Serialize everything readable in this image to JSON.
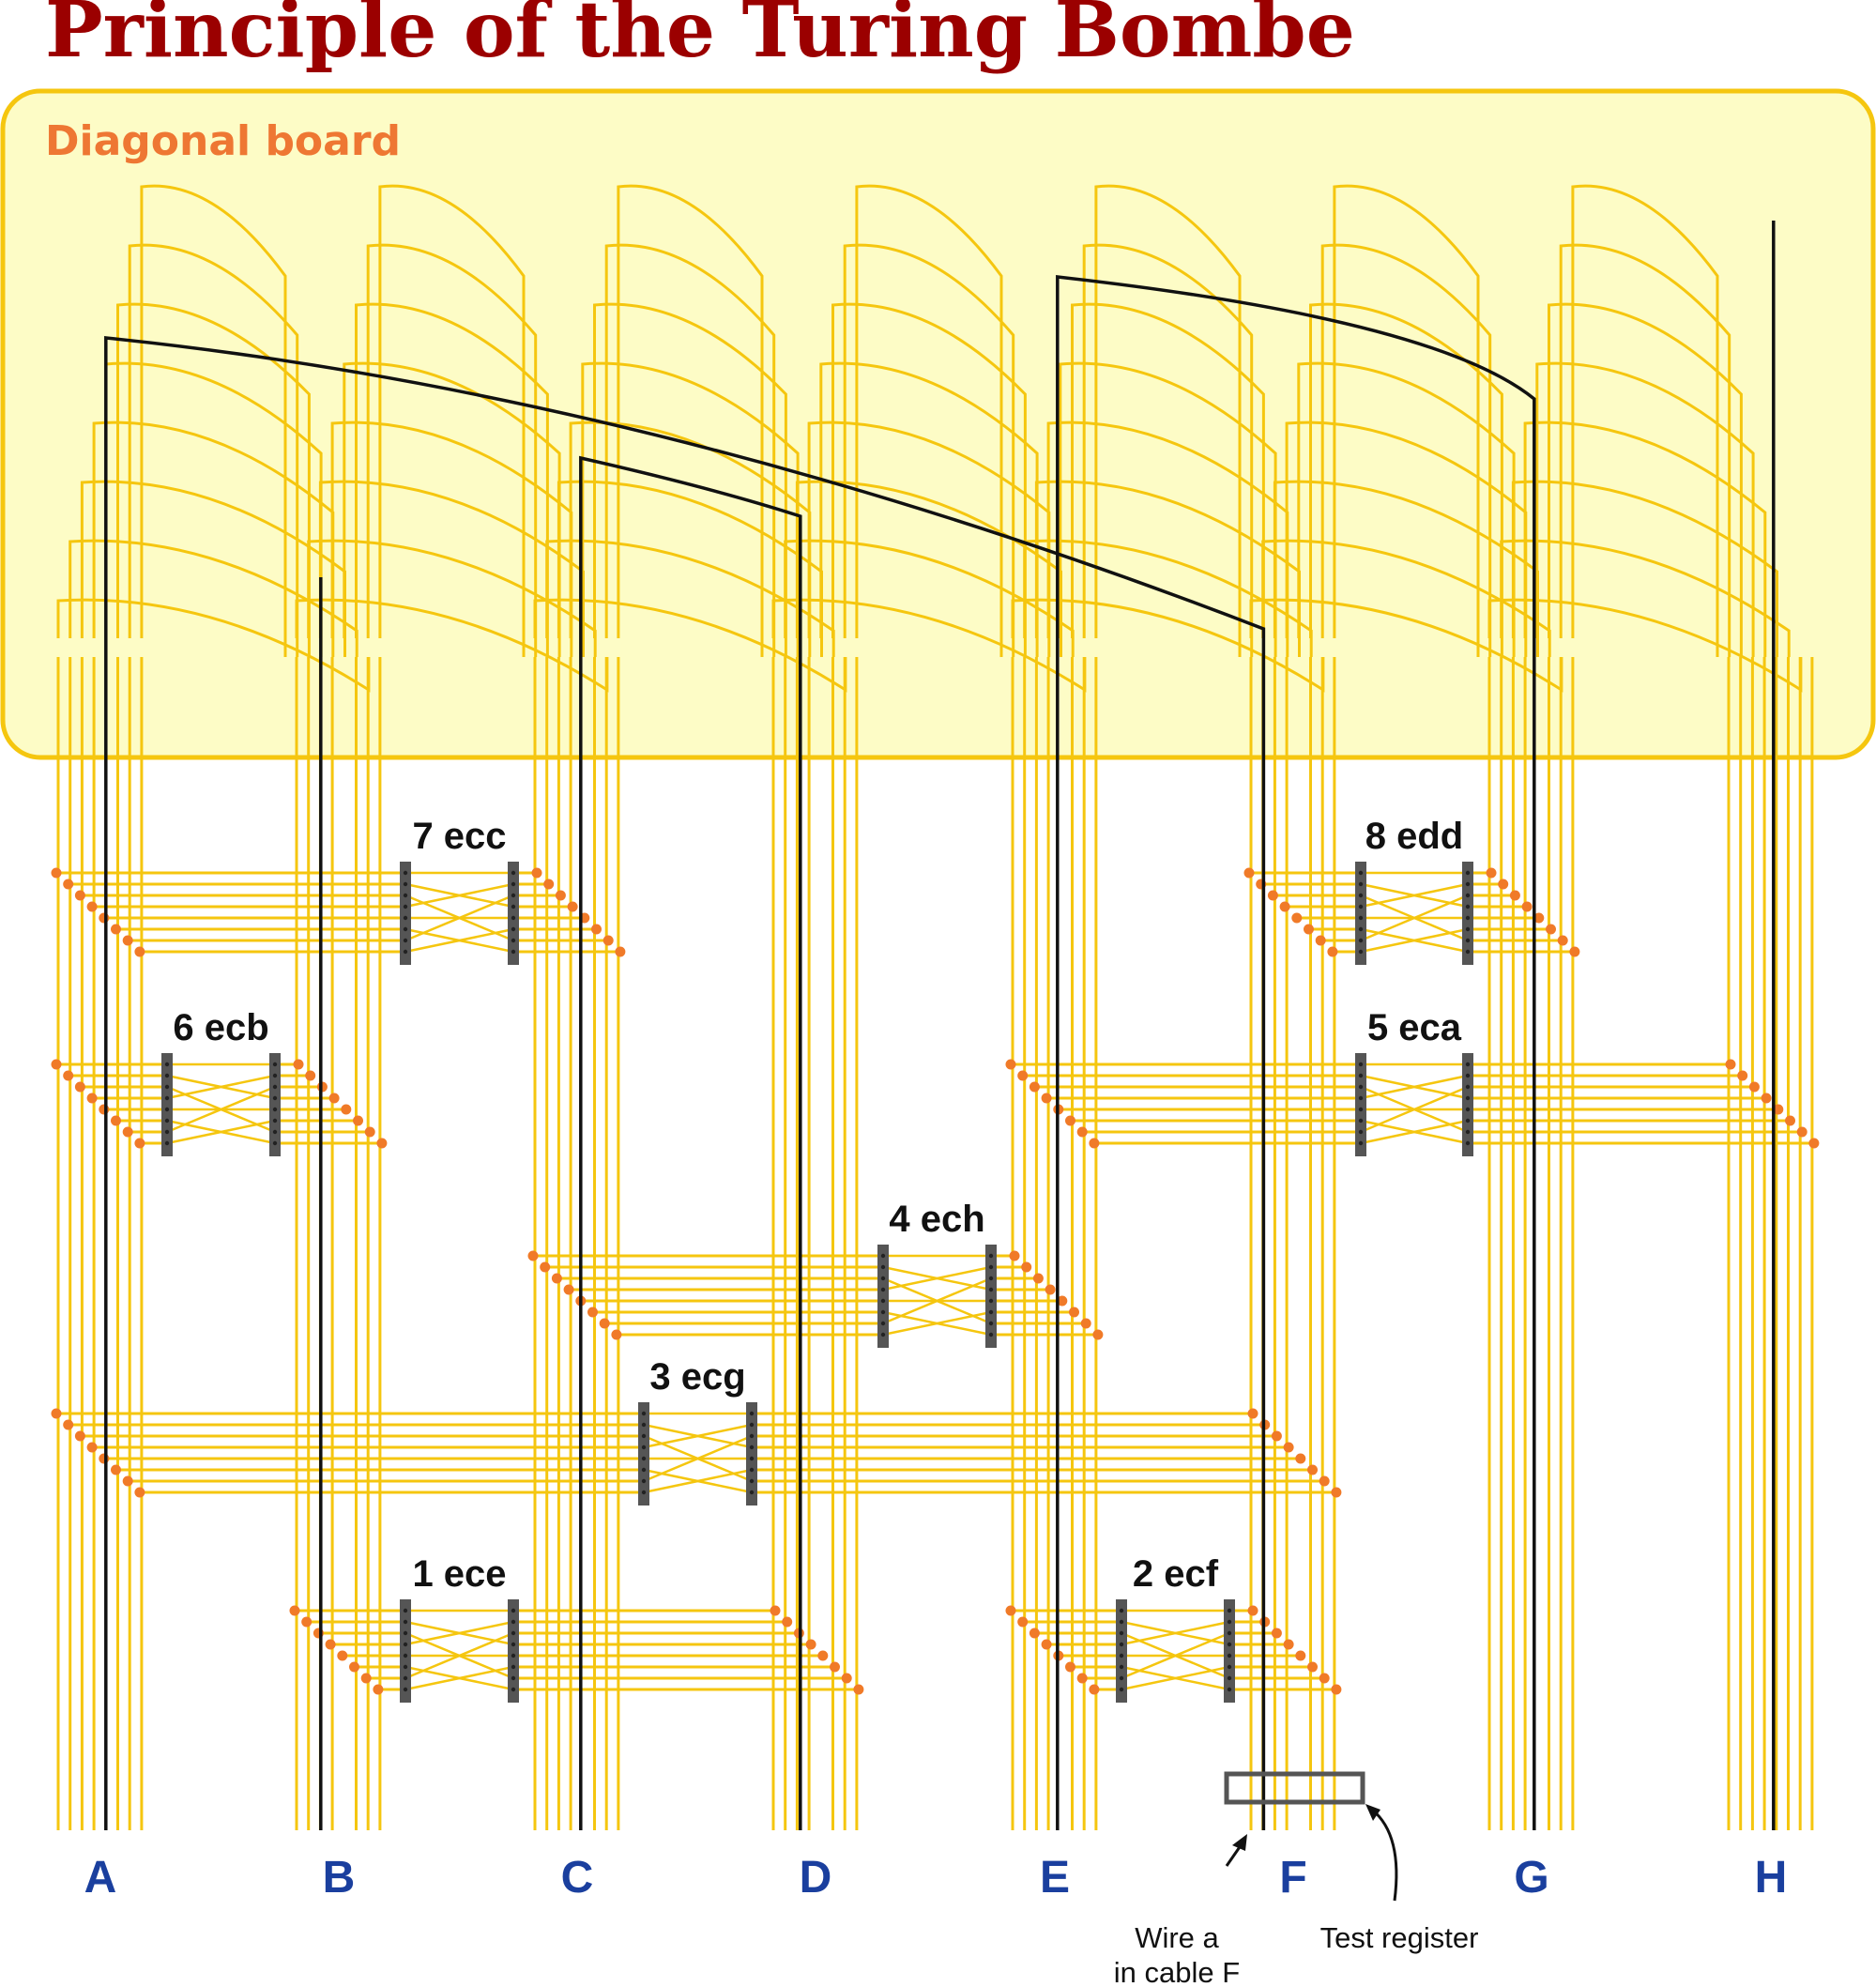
{
  "title": "Principle of the Turing Bombe",
  "diagonal_board": {
    "label": "Diagonal board"
  },
  "cables": [
    "A",
    "B",
    "C",
    "D",
    "E",
    "F",
    "G",
    "H"
  ],
  "scramblers": [
    {
      "id": "1",
      "label": "1 ece",
      "from": "B",
      "to": "D"
    },
    {
      "id": "2",
      "label": "2 ecf",
      "from": "E",
      "to": "F"
    },
    {
      "id": "3",
      "label": "3 ecg",
      "from": "A",
      "to": "F"
    },
    {
      "id": "4",
      "label": "4 ech",
      "from": "C",
      "to": "E"
    },
    {
      "id": "5",
      "label": "5 eca",
      "from": "E",
      "to": "H"
    },
    {
      "id": "6",
      "label": "6 ecb",
      "from": "A",
      "to": "B"
    },
    {
      "id": "7",
      "label": "7 ecc",
      "from": "A",
      "to": "C"
    },
    {
      "id": "8",
      "label": "8 edd",
      "from": "F",
      "to": "G"
    }
  ],
  "annotations": {
    "wire": [
      "Wire a",
      "in cable F"
    ],
    "test_register": "Test register"
  },
  "colors": {
    "title": "#9b0000",
    "board_fill": "#fdfcc6",
    "board_border": "#f5c60f",
    "wire": "#f5c60f",
    "dot": "#f07a28",
    "active_wire": "#111111",
    "scrambler": "#555555",
    "cable_label": "#1a3f9e"
  }
}
